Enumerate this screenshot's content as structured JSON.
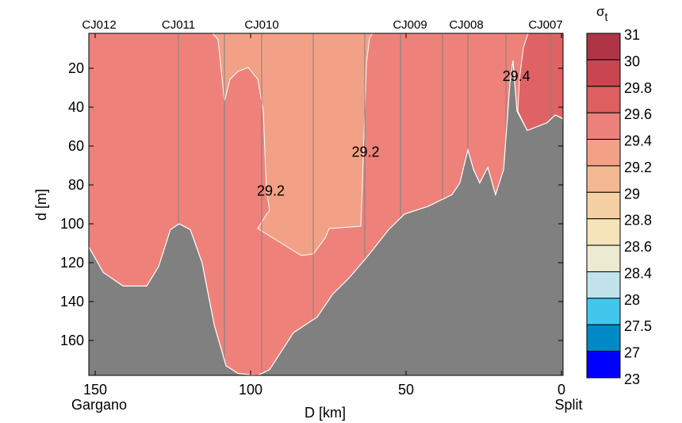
{
  "chart_data": {
    "type": "section-contour",
    "title": "",
    "xlabel": "D [km]",
    "ylabel": "d [m]",
    "xlim": [
      152,
      -0.5
    ],
    "ylim": [
      2,
      178
    ],
    "xticks": [
      150,
      100,
      50,
      0
    ],
    "yticks": [
      20,
      40,
      60,
      80,
      100,
      120,
      140,
      160
    ],
    "x_end_labels": {
      "left": "Gargano",
      "right": "Split"
    },
    "stations": [
      {
        "name": "CJ012",
        "D": 148
      },
      {
        "name": "CJ011",
        "D": 123
      },
      {
        "name": "CJ010",
        "D": 96
      },
      {
        "name": "CJ009",
        "D": 49
      },
      {
        "name": "CJ008",
        "D": 31
      },
      {
        "name": "CJ007",
        "D": 5
      }
    ],
    "contour_labels": [
      {
        "text": "29.2",
        "D": 93.5,
        "d": 83
      },
      {
        "text": "29.2",
        "D": 63,
        "d": 63
      },
      {
        "text": "29.4",
        "D": 14.5,
        "d": 24
      }
    ],
    "regions": [
      {
        "range": "29.4-29.6",
        "color": "#EE827A"
      },
      {
        "range": "29.2-29.4",
        "color": "#F2A186"
      },
      {
        "range": "29.6-29.8",
        "color": "#DF6364"
      }
    ],
    "bathymetry": {
      "color": "#808080",
      "D": [
        152,
        147.4,
        141,
        133.4,
        129.6,
        125.8,
        123,
        119.4,
        115.6,
        111.7,
        107.9,
        104,
        97.7,
        93.9,
        86.2,
        78.6,
        73.5,
        68.4,
        62,
        55.6,
        50.5,
        42.9,
        35.2,
        32.7,
        30.1,
        28.3,
        26.3,
        23.7,
        21.2,
        18.6,
        16.6,
        15.6,
        14.3,
        11,
        4.6,
        2,
        -0.5
      ],
      "d": [
        112,
        125,
        132,
        132,
        122,
        103,
        100,
        103,
        120,
        152,
        173,
        177,
        178,
        175,
        156,
        148,
        136,
        128,
        116,
        103,
        95,
        91,
        85,
        79,
        62,
        72,
        79,
        71,
        85,
        72,
        28,
        16,
        42,
        52,
        48,
        44,
        46
      ]
    },
    "colorbar": {
      "title": "σ",
      "subscript": "t",
      "labels": [
        "31",
        "30",
        "29.8",
        "29.6",
        "29.4",
        "29.2",
        "29",
        "28.8",
        "28.6",
        "28.4",
        "28",
        "27.5",
        "27",
        "23"
      ],
      "colors": [
        "#AF3546",
        "#C94550",
        "#DD5F60",
        "#EC807A",
        "#F2A086",
        "#F4B893",
        "#F5D0A2",
        "#F5E3BA",
        "#ECEAD0",
        "#C2E2EC",
        "#42C6EC",
        "#0089C6",
        "#0000FF"
      ]
    }
  }
}
